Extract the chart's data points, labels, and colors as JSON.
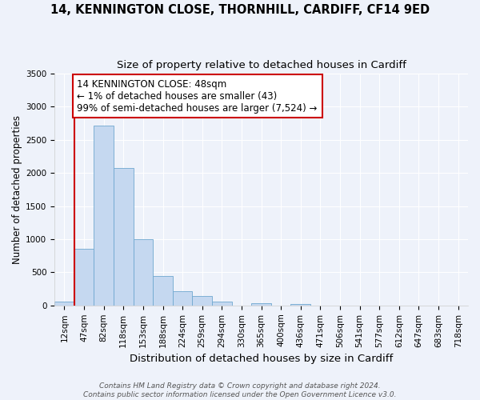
{
  "title": "14, KENNINGTON CLOSE, THORNHILL, CARDIFF, CF14 9ED",
  "subtitle": "Size of property relative to detached houses in Cardiff",
  "xlabel": "Distribution of detached houses by size in Cardiff",
  "ylabel": "Number of detached properties",
  "bar_labels": [
    "12sqm",
    "47sqm",
    "82sqm",
    "118sqm",
    "153sqm",
    "188sqm",
    "224sqm",
    "259sqm",
    "294sqm",
    "330sqm",
    "365sqm",
    "400sqm",
    "436sqm",
    "471sqm",
    "506sqm",
    "541sqm",
    "577sqm",
    "612sqm",
    "647sqm",
    "683sqm",
    "718sqm"
  ],
  "bar_values": [
    55,
    850,
    2720,
    2070,
    1005,
    450,
    210,
    145,
    55,
    0,
    30,
    0,
    20,
    0,
    0,
    0,
    0,
    0,
    0,
    0,
    0
  ],
  "bar_color": "#c5d8f0",
  "bar_edgecolor": "#6fa8d0",
  "ylim": [
    0,
    3500
  ],
  "yticks": [
    0,
    500,
    1000,
    1500,
    2000,
    2500,
    3000,
    3500
  ],
  "annotation_text": "14 KENNINGTON CLOSE: 48sqm\n← 1% of detached houses are smaller (43)\n99% of semi-detached houses are larger (7,524) →",
  "annotation_box_facecolor": "#ffffff",
  "annotation_box_edgecolor": "#cc0000",
  "vline_color": "#cc0000",
  "footer_line1": "Contains HM Land Registry data © Crown copyright and database right 2024.",
  "footer_line2": "Contains public sector information licensed under the Open Government Licence v3.0.",
  "background_color": "#eef2fa",
  "plot_background_color": "#eef2fa",
  "grid_color": "#ffffff",
  "title_fontsize": 10.5,
  "subtitle_fontsize": 9.5,
  "xlabel_fontsize": 9.5,
  "ylabel_fontsize": 8.5,
  "tick_fontsize": 7.5,
  "annotation_fontsize": 8.5,
  "footer_fontsize": 6.5
}
